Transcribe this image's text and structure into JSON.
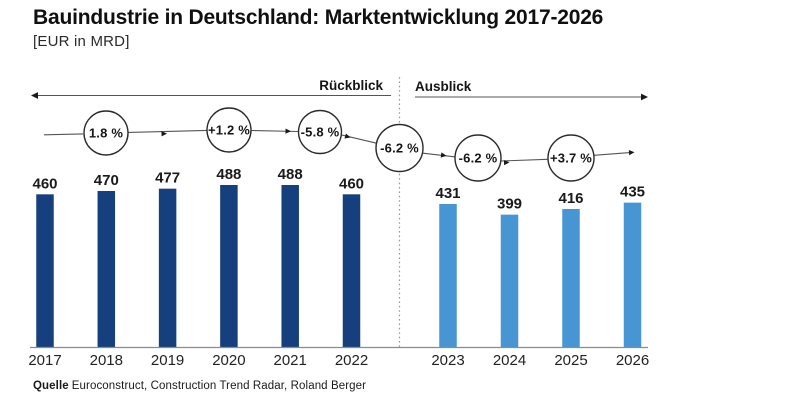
{
  "title": "Bauindustrie in Deutschland: Marktentwicklung 2017-2026",
  "subtitle": "[EUR in MRD]",
  "periods": {
    "past": "Rückblick",
    "future": "Ausblick"
  },
  "source": {
    "prefix": "Quelle",
    "text": "Euroconstruct, Construction Trend Radar, Roland Berger"
  },
  "colors": {
    "past_bar": "#16407D",
    "future_bar": "#4795D2",
    "axis": "#8C8C8C",
    "divider": "#9A9A9A",
    "rail": "#555555",
    "circle_stroke": "#2B2B2B",
    "label_text": "#1A1A1A",
    "year_text": "#222222",
    "period_line": "#555555"
  },
  "chart_data": {
    "type": "bar",
    "title": "Bauindustrie in Deutschland: Marktentwicklung 2017-2026",
    "unit": "EUR in MRD",
    "xlabel": "",
    "ylabel": "EUR in MRD",
    "ylim": [
      0,
      520
    ],
    "grid": false,
    "legend_position": "none",
    "categories": [
      "2017",
      "2018",
      "2019",
      "2020",
      "2021",
      "2022",
      "2023",
      "2024",
      "2025",
      "2026"
    ],
    "series": [
      {
        "name": "Rückblick",
        "categories": [
          "2017",
          "2018",
          "2019",
          "2020",
          "2021",
          "2022"
        ],
        "values": [
          460,
          470,
          477,
          488,
          488,
          460
        ],
        "color": "#16407D"
      },
      {
        "name": "Ausblick",
        "categories": [
          "2023",
          "2024",
          "2025",
          "2026"
        ],
        "values": [
          431,
          399,
          416,
          435
        ],
        "color": "#4795D2"
      }
    ],
    "growth_labels": [
      "1.8 %",
      "+1.2 %",
      "-5.8 %",
      "-6.2 %",
      "-6.2 %",
      "+3.7 %"
    ]
  }
}
